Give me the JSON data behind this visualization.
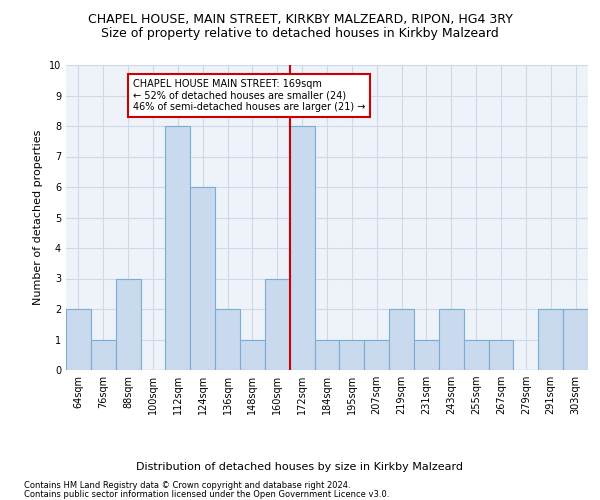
{
  "title1": "CHAPEL HOUSE, MAIN STREET, KIRKBY MALZEARD, RIPON, HG4 3RY",
  "title2": "Size of property relative to detached houses in Kirkby Malzeard",
  "xlabel": "Distribution of detached houses by size in Kirkby Malzeard",
  "ylabel": "Number of detached properties",
  "categories": [
    "64sqm",
    "76sqm",
    "88sqm",
    "100sqm",
    "112sqm",
    "124sqm",
    "136sqm",
    "148sqm",
    "160sqm",
    "172sqm",
    "184sqm",
    "195sqm",
    "207sqm",
    "219sqm",
    "231sqm",
    "243sqm",
    "255sqm",
    "267sqm",
    "279sqm",
    "291sqm",
    "303sqm"
  ],
  "values": [
    2,
    1,
    3,
    0,
    8,
    6,
    2,
    1,
    3,
    8,
    1,
    1,
    1,
    2,
    1,
    2,
    1,
    1,
    0,
    2,
    2
  ],
  "bar_color": "#c9d9ee",
  "bar_edge_color": "#7aadd4",
  "annotation_text": "CHAPEL HOUSE MAIN STREET: 169sqm\n← 52% of detached houses are smaller (24)\n46% of semi-detached houses are larger (21) →",
  "annotation_box_color": "#ffffff",
  "annotation_box_edge": "#cc0000",
  "vline_color": "#cc0000",
  "ylim": [
    0,
    10
  ],
  "yticks": [
    0,
    1,
    2,
    3,
    4,
    5,
    6,
    7,
    8,
    9,
    10
  ],
  "footer1": "Contains HM Land Registry data © Crown copyright and database right 2024.",
  "footer2": "Contains public sector information licensed under the Open Government Licence v3.0.",
  "grid_color": "#d0d8e8",
  "bg_color": "#eef2f9",
  "title1_fontsize": 9,
  "title2_fontsize": 9,
  "ylabel_fontsize": 8,
  "xlabel_fontsize": 8,
  "tick_fontsize": 7,
  "annotation_fontsize": 7,
  "footer_fontsize": 6
}
